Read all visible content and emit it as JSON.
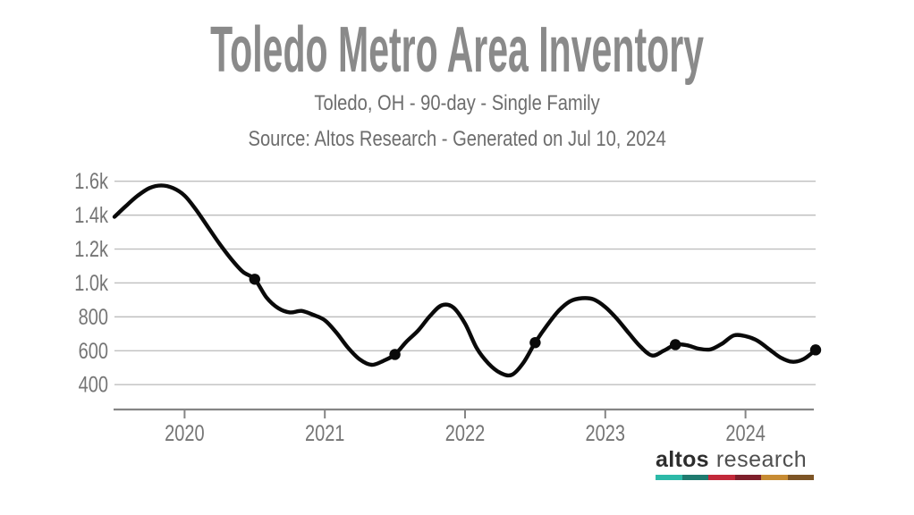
{
  "header": {
    "title": "Toledo Metro Area Inventory",
    "subtitle": "Toledo, OH - 90-day - Single Family",
    "source_line": "Source: Altos Research - Generated on Jul 10, 2024"
  },
  "chart_data": {
    "type": "line",
    "title": "Toledo Metro Area Inventory",
    "grid": "horizontal",
    "legend": "none",
    "x_axis": {
      "tick_labels": [
        "2020",
        "2021",
        "2022",
        "2023",
        "2024"
      ],
      "tick_month_indices": [
        6,
        18,
        30,
        42,
        54
      ]
    },
    "y_axis": {
      "tick_values": [
        1600,
        1400,
        1200,
        1000,
        800,
        600,
        400
      ],
      "tick_labels": [
        "1.6k",
        "1.4k",
        "1.2k",
        "1.0k",
        "800",
        "600",
        "400"
      ]
    },
    "ylim": [
      1600,
      400
    ],
    "series": [
      {
        "name": "Single Family Inventory (90-day)",
        "x_start": "2019-07",
        "x_interval": "monthly",
        "color": "#0a0a0a",
        "values": [
          1390,
          1455,
          1515,
          1560,
          1575,
          1560,
          1515,
          1430,
          1330,
          1230,
          1140,
          1065,
          1022,
          915,
          852,
          826,
          835,
          812,
          780,
          706,
          617,
          548,
          517,
          540,
          578,
          655,
          720,
          805,
          868,
          855,
          760,
          615,
          525,
          470,
          458,
          530,
          648,
          748,
          835,
          892,
          910,
          903,
          858,
          788,
          705,
          625,
          572,
          600,
          636,
          632,
          612,
          608,
          642,
          690,
          686,
          660,
          610,
          560,
          535,
          552,
          605
        ]
      }
    ],
    "markers": [
      {
        "index": 12,
        "date": "2020-07",
        "value": 1022
      },
      {
        "index": 24,
        "date": "2021-07",
        "value": 578
      },
      {
        "index": 36,
        "date": "2022-07",
        "value": 648
      },
      {
        "index": 48,
        "date": "2023-07",
        "value": 636
      },
      {
        "index": 60,
        "date": "2024-07-10",
        "value": 605
      }
    ],
    "colors": {
      "gridline": "#bfbfbf",
      "axis_line": "#858585",
      "tick_label": "#757575",
      "line": "#0a0a0a",
      "marker": "#0a0a0a"
    }
  },
  "colors": {
    "title": "#8a8a8a",
    "subtitle": "#6d6d6d",
    "background": "#ffffff"
  },
  "branding": {
    "brand_primary": "altos",
    "brand_secondary": "research",
    "bar_colors": [
      "#2cb9a8",
      "#1f7a6f",
      "#c2293a",
      "#7e1f2b",
      "#c78b33",
      "#7d5526"
    ]
  }
}
